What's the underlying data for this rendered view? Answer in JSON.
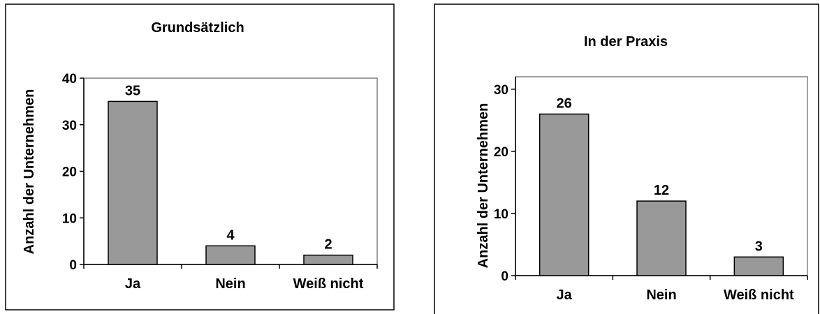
{
  "colors": {
    "bar_fill": "#999999",
    "bar_stroke": "#000000",
    "axis": "#000000",
    "plot_border": "#808080"
  },
  "chart_data": [
    {
      "type": "bar",
      "title": "Grundsätzlich",
      "ylabel": "Anzahl der Unternehmen",
      "xlabel": "",
      "categories": [
        "Ja",
        "Nein",
        "Weiß nicht"
      ],
      "values": [
        35,
        4,
        2
      ],
      "data_labels": [
        "35",
        "4",
        "2"
      ],
      "ylim": [
        0,
        40
      ],
      "yticks": [
        0,
        10,
        20,
        30,
        40
      ],
      "grid": false,
      "legend": "none"
    },
    {
      "type": "bar",
      "title": "In der Praxis",
      "ylabel": "Anzahl der Unternehmen",
      "xlabel": "",
      "categories": [
        "Ja",
        "Nein",
        "Weiß nicht"
      ],
      "values": [
        26,
        12,
        3
      ],
      "data_labels": [
        "26",
        "12",
        "3"
      ],
      "ylim": [
        0,
        32
      ],
      "yticks": [
        0,
        10,
        20,
        30
      ],
      "grid": false,
      "legend": "none"
    }
  ]
}
